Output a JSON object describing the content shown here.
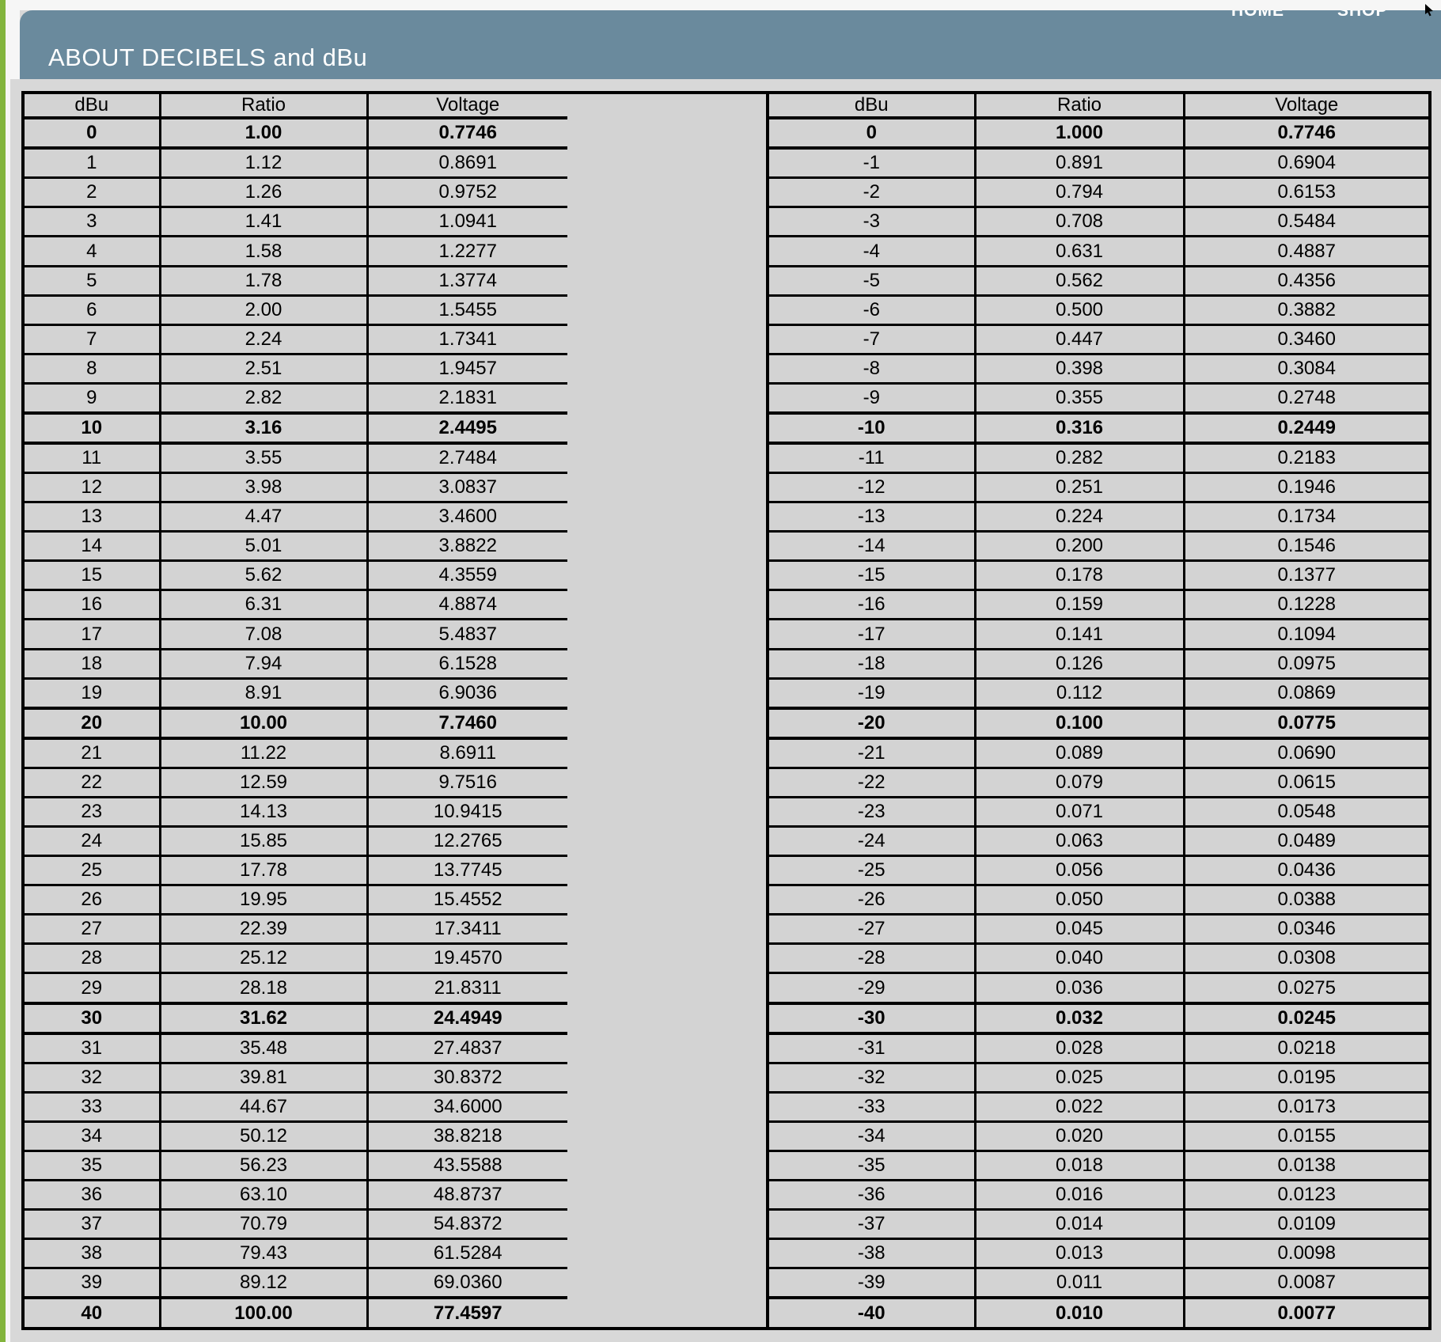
{
  "nav": {
    "home_label": "HOME",
    "shop_label": "SHOP"
  },
  "header": {
    "title": "ABOUT DECIBELS and dBu"
  },
  "colors": {
    "accent_green": "#82b43c",
    "header_blue": "#6a8a9d",
    "page_gray": "#d8d8d8",
    "cell_gray": "#d3d3d3",
    "top_strip_white": "#f6f6f6",
    "border_black": "#000000"
  },
  "tables": {
    "positive": {
      "headers": [
        "dBu",
        "Ratio",
        "Voltage"
      ],
      "rows": [
        [
          "0",
          "1.00",
          "0.7746"
        ],
        [
          "1",
          "1.12",
          "0.8691"
        ],
        [
          "2",
          "1.26",
          "0.9752"
        ],
        [
          "3",
          "1.41",
          "1.0941"
        ],
        [
          "4",
          "1.58",
          "1.2277"
        ],
        [
          "5",
          "1.78",
          "1.3774"
        ],
        [
          "6",
          "2.00",
          "1.5455"
        ],
        [
          "7",
          "2.24",
          "1.7341"
        ],
        [
          "8",
          "2.51",
          "1.9457"
        ],
        [
          "9",
          "2.82",
          "2.1831"
        ],
        [
          "10",
          "3.16",
          "2.4495"
        ],
        [
          "11",
          "3.55",
          "2.7484"
        ],
        [
          "12",
          "3.98",
          "3.0837"
        ],
        [
          "13",
          "4.47",
          "3.4600"
        ],
        [
          "14",
          "5.01",
          "3.8822"
        ],
        [
          "15",
          "5.62",
          "4.3559"
        ],
        [
          "16",
          "6.31",
          "4.8874"
        ],
        [
          "17",
          "7.08",
          "5.4837"
        ],
        [
          "18",
          "7.94",
          "6.1528"
        ],
        [
          "19",
          "8.91",
          "6.9036"
        ],
        [
          "20",
          "10.00",
          "7.7460"
        ],
        [
          "21",
          "11.22",
          "8.6911"
        ],
        [
          "22",
          "12.59",
          "9.7516"
        ],
        [
          "23",
          "14.13",
          "10.9415"
        ],
        [
          "24",
          "15.85",
          "12.2765"
        ],
        [
          "25",
          "17.78",
          "13.7745"
        ],
        [
          "26",
          "19.95",
          "15.4552"
        ],
        [
          "27",
          "22.39",
          "17.3411"
        ],
        [
          "28",
          "25.12",
          "19.4570"
        ],
        [
          "29",
          "28.18",
          "21.8311"
        ],
        [
          "30",
          "31.62",
          "24.4949"
        ],
        [
          "31",
          "35.48",
          "27.4837"
        ],
        [
          "32",
          "39.81",
          "30.8372"
        ],
        [
          "33",
          "44.67",
          "34.6000"
        ],
        [
          "34",
          "50.12",
          "38.8218"
        ],
        [
          "35",
          "56.23",
          "43.5588"
        ],
        [
          "36",
          "63.10",
          "48.8737"
        ],
        [
          "37",
          "70.79",
          "54.8372"
        ],
        [
          "38",
          "79.43",
          "61.5284"
        ],
        [
          "39",
          "89.12",
          "69.0360"
        ],
        [
          "40",
          "100.00",
          "77.4597"
        ]
      ]
    },
    "negative": {
      "headers": [
        "dBu",
        "Ratio",
        "Voltage"
      ],
      "rows": [
        [
          "0",
          "1.000",
          "0.7746"
        ],
        [
          "-1",
          "0.891",
          "0.6904"
        ],
        [
          "-2",
          "0.794",
          "0.6153"
        ],
        [
          "-3",
          "0.708",
          "0.5484"
        ],
        [
          "-4",
          "0.631",
          "0.4887"
        ],
        [
          "-5",
          "0.562",
          "0.4356"
        ],
        [
          "-6",
          "0.500",
          "0.3882"
        ],
        [
          "-7",
          "0.447",
          "0.3460"
        ],
        [
          "-8",
          "0.398",
          "0.3084"
        ],
        [
          "-9",
          "0.355",
          "0.2748"
        ],
        [
          "-10",
          "0.316",
          "0.2449"
        ],
        [
          "-11",
          "0.282",
          "0.2183"
        ],
        [
          "-12",
          "0.251",
          "0.1946"
        ],
        [
          "-13",
          "0.224",
          "0.1734"
        ],
        [
          "-14",
          "0.200",
          "0.1546"
        ],
        [
          "-15",
          "0.178",
          "0.1377"
        ],
        [
          "-16",
          "0.159",
          "0.1228"
        ],
        [
          "-17",
          "0.141",
          "0.1094"
        ],
        [
          "-18",
          "0.126",
          "0.0975"
        ],
        [
          "-19",
          "0.112",
          "0.0869"
        ],
        [
          "-20",
          "0.100",
          "0.0775"
        ],
        [
          "-21",
          "0.089",
          "0.0690"
        ],
        [
          "-22",
          "0.079",
          "0.0615"
        ],
        [
          "-23",
          "0.071",
          "0.0548"
        ],
        [
          "-24",
          "0.063",
          "0.0489"
        ],
        [
          "-25",
          "0.056",
          "0.0436"
        ],
        [
          "-26",
          "0.050",
          "0.0388"
        ],
        [
          "-27",
          "0.045",
          "0.0346"
        ],
        [
          "-28",
          "0.040",
          "0.0308"
        ],
        [
          "-29",
          "0.036",
          "0.0275"
        ],
        [
          "-30",
          "0.032",
          "0.0245"
        ],
        [
          "-31",
          "0.028",
          "0.0218"
        ],
        [
          "-32",
          "0.025",
          "0.0195"
        ],
        [
          "-33",
          "0.022",
          "0.0173"
        ],
        [
          "-34",
          "0.020",
          "0.0155"
        ],
        [
          "-35",
          "0.018",
          "0.0138"
        ],
        [
          "-36",
          "0.016",
          "0.0123"
        ],
        [
          "-37",
          "0.014",
          "0.0109"
        ],
        [
          "-38",
          "0.013",
          "0.0098"
        ],
        [
          "-39",
          "0.011",
          "0.0087"
        ],
        [
          "-40",
          "0.010",
          "0.0077"
        ]
      ]
    }
  }
}
